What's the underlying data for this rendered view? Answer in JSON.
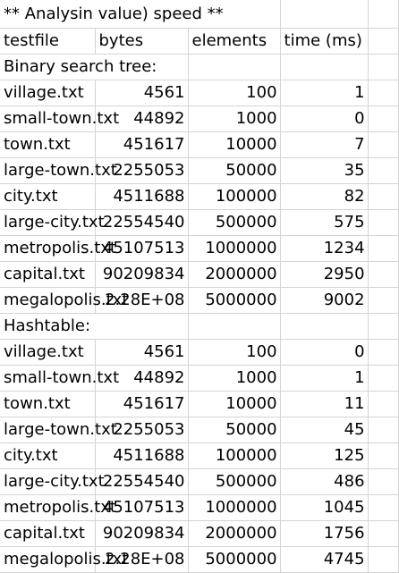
{
  "title": "** Analysin  value) speed **",
  "headers": [
    "testfile",
    "bytes",
    "elements",
    "time (ms)"
  ],
  "sections": [
    {
      "label": "Binary search tree:",
      "rows": [
        {
          "file": "village.txt",
          "bytes": "4561",
          "elements": "100",
          "time": "1"
        },
        {
          "file": "small-town.txt",
          "bytes": "44892",
          "elements": "1000",
          "time": "0"
        },
        {
          "file": "town.txt",
          "bytes": "451617",
          "elements": "10000",
          "time": "7"
        },
        {
          "file": "large-town.txt",
          "bytes": "2255053",
          "elements": "50000",
          "time": "35"
        },
        {
          "file": "city.txt",
          "bytes": "4511688",
          "elements": "100000",
          "time": "82"
        },
        {
          "file": "large-city.txt",
          "bytes": "22554540",
          "elements": "500000",
          "time": "575"
        },
        {
          "file": "metropolis.txt",
          "bytes": "45107513",
          "elements": "1000000",
          "time": "1234"
        },
        {
          "file": "capital.txt",
          "bytes": "90209834",
          "elements": "2000000",
          "time": "2950"
        },
        {
          "file": "megalopolis.txt",
          "bytes": "2.28E+08",
          "elements": "5000000",
          "time": "9002"
        }
      ]
    },
    {
      "label": "Hashtable:",
      "rows": [
        {
          "file": "village.txt",
          "bytes": "4561",
          "elements": "100",
          "time": "0"
        },
        {
          "file": "small-town.txt",
          "bytes": "44892",
          "elements": "1000",
          "time": "1"
        },
        {
          "file": "town.txt",
          "bytes": "451617",
          "elements": "10000",
          "time": "11"
        },
        {
          "file": "large-town.txt",
          "bytes": "2255053",
          "elements": "50000",
          "time": "45"
        },
        {
          "file": "city.txt",
          "bytes": "4511688",
          "elements": "100000",
          "time": "125"
        },
        {
          "file": "large-city.txt",
          "bytes": "22554540",
          "elements": "500000",
          "time": "486"
        },
        {
          "file": "metropolis.txt",
          "bytes": "45107513",
          "elements": "1000000",
          "time": "1045"
        },
        {
          "file": "capital.txt",
          "bytes": "90209834",
          "elements": "2000000",
          "time": "1756"
        },
        {
          "file": "megalopolis.txt",
          "bytes": "2.28E+08",
          "elements": "5000000",
          "time": "4745"
        }
      ]
    }
  ],
  "colors": {
    "gridline": "#d4d4d4",
    "text": "#000000",
    "background": "#ffffff"
  }
}
